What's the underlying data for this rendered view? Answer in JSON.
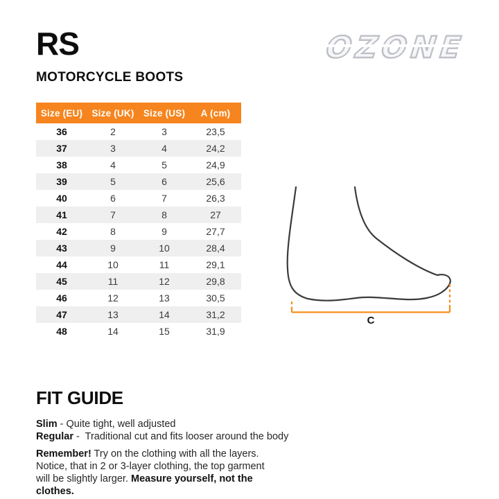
{
  "header": {
    "title": "RS",
    "subtitle": "MOTORCYCLE BOOTS",
    "logo_text": "OZONE"
  },
  "table": {
    "headers": [
      "Size (EU)",
      "Size (UK)",
      "Size (US)",
      "A (cm)"
    ],
    "rows": [
      [
        "36",
        "2",
        "3",
        "23,5"
      ],
      [
        "37",
        "3",
        "4",
        "24,2"
      ],
      [
        "38",
        "4",
        "5",
        "24,9"
      ],
      [
        "39",
        "5",
        "6",
        "25,6"
      ],
      [
        "40",
        "6",
        "7",
        "26,3"
      ],
      [
        "41",
        "7",
        "8",
        "27"
      ],
      [
        "42",
        "8",
        "9",
        "27,7"
      ],
      [
        "43",
        "9",
        "10",
        "28,4"
      ],
      [
        "44",
        "10",
        "11",
        "29,1"
      ],
      [
        "45",
        "11",
        "12",
        "29,8"
      ],
      [
        "46",
        "12",
        "13",
        "30,5"
      ],
      [
        "47",
        "13",
        "14",
        "31,2"
      ],
      [
        "48",
        "14",
        "15",
        "31,9"
      ]
    ]
  },
  "diagram": {
    "measure_label": "C"
  },
  "fit_guide": {
    "title": "FIT GUIDE",
    "lines": [
      [
        {
          "b": "Slim"
        },
        {
          "t": " - Quite tight, well adjusted"
        }
      ],
      [
        {
          "b": "Regular"
        },
        {
          "t": " -  Traditional cut and fits looser around the body"
        }
      ]
    ],
    "note_lines": [
      [
        {
          "b": "Remember!"
        },
        {
          "t": " Try on the clothing with all the layers."
        }
      ],
      [
        {
          "t": "Notice, that in 2 or 3-layer clothing, the top garment"
        }
      ],
      [
        {
          "t": "will be slightly larger. "
        },
        {
          "b": "Measure yourself, not the clothes."
        }
      ]
    ]
  },
  "colors": {
    "accent_orange": "#f6851f",
    "diagram_orange": "#f78e1e",
    "row_alt": "#efefef",
    "logo_gray": "#bfc0c7",
    "foot_stroke": "#3a3a3a"
  }
}
